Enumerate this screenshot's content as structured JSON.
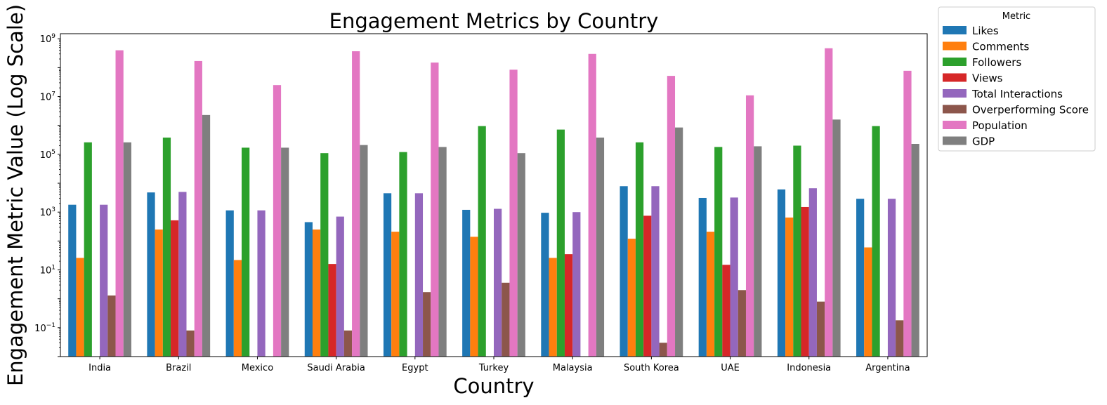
{
  "chart_data": {
    "type": "bar",
    "title": "Engagement Metrics by Country",
    "xlabel": "Country",
    "ylabel": "Engagement Metric Value (Log Scale)",
    "yscale": "log",
    "ylim": [
      0.01,
      1500000000
    ],
    "yticks": [
      {
        "value": 0.1,
        "base": "10",
        "exp": "−1"
      },
      {
        "value": 10,
        "base": "10",
        "exp": "1"
      },
      {
        "value": 1000,
        "base": "10",
        "exp": "3"
      },
      {
        "value": 100000,
        "base": "10",
        "exp": "5"
      },
      {
        "value": 10000000,
        "base": "10",
        "exp": "7"
      },
      {
        "value": 1000000000,
        "base": "10",
        "exp": "9"
      }
    ],
    "grid": false,
    "legend": {
      "title": "Metric",
      "placement": "outside-top-right"
    },
    "categories": [
      "India",
      "Brazil",
      "Mexico",
      "Saudi Arabia",
      "Egypt",
      "Turkey",
      "Malaysia",
      "South Korea",
      "UAE",
      "Indonesia",
      "Argentina"
    ],
    "series": [
      {
        "name": "Likes",
        "color": "#1f77b4",
        "values": [
          1800,
          4800,
          1150,
          450,
          4500,
          1200,
          950,
          7900,
          3100,
          6100,
          2900
        ]
      },
      {
        "name": "Comments",
        "color": "#ff7f0e",
        "values": [
          26,
          250,
          22,
          250,
          210,
          140,
          26,
          120,
          210,
          650,
          60
        ]
      },
      {
        "name": "Followers",
        "color": "#2ca02c",
        "values": [
          260000,
          380000,
          170000,
          110000,
          120000,
          950000,
          720000,
          260000,
          180000,
          200000,
          950000
        ]
      },
      {
        "name": "Views",
        "color": "#d62728",
        "values": [
          0,
          520,
          0,
          16,
          0,
          0,
          35,
          750,
          15,
          1500,
          0
        ]
      },
      {
        "name": "Total Interactions",
        "color": "#9467bd",
        "values": [
          1800,
          5000,
          1150,
          700,
          4500,
          1300,
          1000,
          7900,
          3200,
          6700,
          2900
        ]
      },
      {
        "name": "Overperforming Score",
        "color": "#8c564b",
        "values": [
          1.3,
          0.08,
          0,
          0.08,
          1.7,
          3.6,
          0,
          0.03,
          2.0,
          0.8,
          0.18
        ]
      },
      {
        "name": "Population",
        "color": "#e377c2",
        "values": [
          400000000,
          170000000,
          25000000,
          370000000,
          150000000,
          85000000,
          300000000,
          52000000,
          11000000,
          470000000,
          78000000
        ]
      },
      {
        "name": "GDP",
        "color": "#7f7f7f",
        "values": [
          260000,
          2300000,
          170000,
          210000,
          180000,
          110000,
          380000,
          850000,
          190000,
          1600000,
          230000
        ]
      }
    ]
  }
}
